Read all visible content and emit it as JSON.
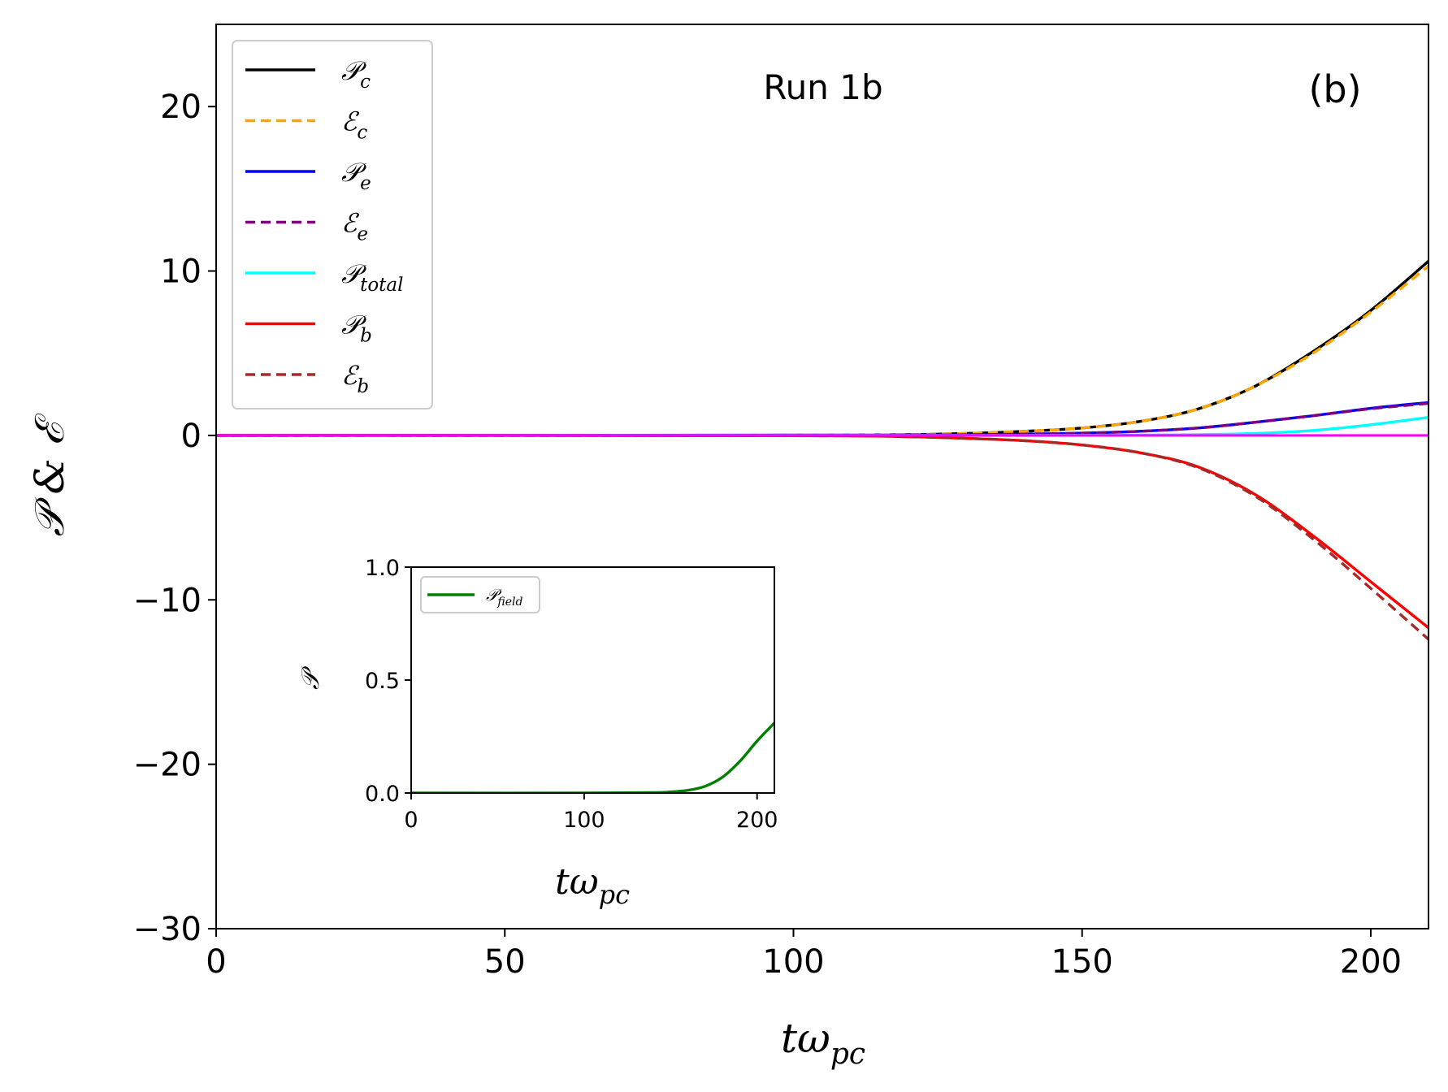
{
  "chart_data": [
    {
      "type": "line",
      "panel_label": "(b)",
      "annotation": "Run 1b",
      "xlabel": {
        "base": "tω",
        "sub": "pc"
      },
      "ylabel": "𝒫 & ℰ",
      "xlim": [
        0,
        210
      ],
      "ylim": [
        -30,
        25
      ],
      "xticks": [
        0,
        50,
        100,
        150,
        200
      ],
      "yticks": [
        -30,
        -20,
        -10,
        0,
        10,
        20
      ],
      "grid": false,
      "legend_position": "upper-left",
      "x": [
        0,
        100,
        120,
        130,
        140,
        150,
        160,
        170,
        180,
        190,
        200,
        210
      ],
      "series": [
        {
          "name": "𝒫",
          "sub": "c",
          "color": "#000000",
          "dash": "solid",
          "values": [
            0,
            0.02,
            0.05,
            0.12,
            0.25,
            0.45,
            0.85,
            1.6,
            3.0,
            5.1,
            7.6,
            10.6
          ]
        },
        {
          "name": "ℰ",
          "sub": "c",
          "color": "#ffa500",
          "dash": "dashed",
          "values": [
            0,
            0.02,
            0.05,
            0.12,
            0.25,
            0.45,
            0.85,
            1.6,
            3.0,
            5.0,
            7.5,
            10.3
          ]
        },
        {
          "name": "𝒫",
          "sub": "e",
          "color": "#0000ff",
          "dash": "solid",
          "values": [
            0,
            0.01,
            0.02,
            0.04,
            0.08,
            0.14,
            0.25,
            0.45,
            0.8,
            1.2,
            1.65,
            2.0
          ]
        },
        {
          "name": "ℰ",
          "sub": "e",
          "color": "#800080",
          "dash": "dashed",
          "values": [
            0,
            0.01,
            0.02,
            0.04,
            0.08,
            0.14,
            0.25,
            0.45,
            0.8,
            1.2,
            1.62,
            1.95
          ]
        },
        {
          "name": "𝒫",
          "sub": "total",
          "color": "#00ffff",
          "dash": "solid",
          "values": [
            0,
            0,
            0,
            0,
            0,
            0.01,
            0.02,
            0.05,
            0.12,
            0.3,
            0.65,
            1.1
          ]
        },
        {
          "name": "𝒫",
          "sub": "b",
          "color": "#ff0000",
          "dash": "solid",
          "values": [
            0,
            -0.02,
            -0.08,
            -0.18,
            -0.32,
            -0.58,
            -1.05,
            -1.9,
            -3.6,
            -6.1,
            -8.9,
            -11.7
          ]
        },
        {
          "name": "ℰ",
          "sub": "b",
          "color": "#a52a2a",
          "dash": "dashed",
          "values": [
            0,
            -0.02,
            -0.08,
            -0.18,
            -0.32,
            -0.58,
            -1.05,
            -1.95,
            -3.7,
            -6.3,
            -9.3,
            -12.4
          ]
        }
      ],
      "reference_line": {
        "y": 0,
        "color": "#ff00ff"
      }
    },
    {
      "type": "line",
      "role": "inset",
      "xlabel": {
        "base": "tω",
        "sub": "pc"
      },
      "ylabel": "𝒫",
      "xlim": [
        0,
        210
      ],
      "ylim": [
        0,
        1
      ],
      "xticks": [
        0,
        100,
        200
      ],
      "yticks": [
        "0.0",
        "0.5",
        "1.0"
      ],
      "legend_position": "upper-left",
      "x": [
        0,
        100,
        140,
        150,
        160,
        170,
        180,
        190,
        200,
        210
      ],
      "series": [
        {
          "name": "𝒫",
          "sub": "field",
          "color": "#008000",
          "dash": "solid",
          "values": [
            0,
            0.0,
            0.002,
            0.005,
            0.012,
            0.03,
            0.07,
            0.14,
            0.23,
            0.31
          ]
        }
      ]
    }
  ]
}
